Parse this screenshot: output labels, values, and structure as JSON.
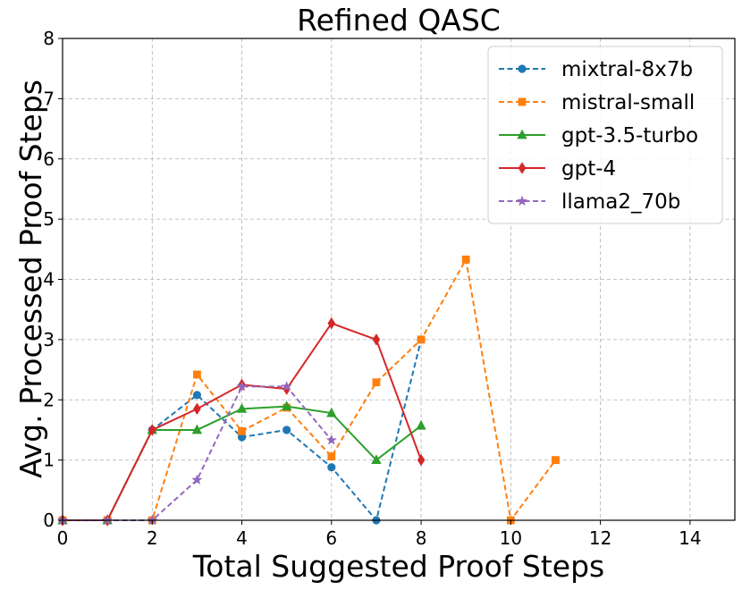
{
  "chart_data": {
    "type": "line",
    "title": "Refined QASC",
    "xlabel": "Total Suggested Proof Steps",
    "ylabel": "Avg. Processed Proof Steps",
    "xlim": [
      0,
      15
    ],
    "ylim": [
      0,
      8
    ],
    "xticks": [
      0,
      2,
      4,
      6,
      8,
      10,
      12,
      14
    ],
    "yticks": [
      0,
      1,
      2,
      3,
      4,
      5,
      6,
      7,
      8
    ],
    "grid": true,
    "legend_position": "top-right",
    "series": [
      {
        "name": "mixtral-8x7b",
        "color": "#1f77b4",
        "marker": "circle",
        "dashed": true,
        "points": [
          [
            0,
            0
          ],
          [
            1,
            0
          ],
          [
            2,
            1.5
          ],
          [
            3,
            2.08
          ],
          [
            4,
            1.38
          ],
          [
            5,
            1.5
          ],
          [
            6,
            0.88
          ],
          [
            7,
            0
          ],
          [
            8,
            3.0
          ]
        ]
      },
      {
        "name": "mistral-small",
        "color": "#ff7f0e",
        "marker": "square",
        "dashed": true,
        "points": [
          [
            0,
            0
          ],
          [
            1,
            0
          ],
          [
            2,
            0
          ],
          [
            3,
            2.42
          ],
          [
            4,
            1.48
          ],
          [
            5,
            1.87
          ],
          [
            6,
            1.06
          ],
          [
            7,
            2.29
          ],
          [
            8,
            3.0
          ],
          [
            9,
            4.33
          ],
          [
            10,
            0
          ],
          [
            11,
            1.0
          ]
        ]
      },
      {
        "name": "gpt-3.5-turbo",
        "color": "#2ca02c",
        "marker": "triangle",
        "dashed": false,
        "points": [
          [
            0,
            0
          ],
          [
            1,
            0
          ],
          [
            2,
            1.5
          ],
          [
            3,
            1.5
          ],
          [
            4,
            1.85
          ],
          [
            5,
            1.89
          ],
          [
            6,
            1.78
          ],
          [
            7,
            1.0
          ],
          [
            8,
            1.57
          ]
        ]
      },
      {
        "name": "gpt-4",
        "color": "#d62728",
        "marker": "diamond",
        "dashed": false,
        "points": [
          [
            0,
            0
          ],
          [
            1,
            0
          ],
          [
            2,
            1.5
          ],
          [
            3,
            1.85
          ],
          [
            4,
            2.25
          ],
          [
            5,
            2.18
          ],
          [
            6,
            3.27
          ],
          [
            7,
            3.0
          ],
          [
            8,
            1.0
          ]
        ]
      },
      {
        "name": "llama2_70b",
        "color": "#9467bd",
        "marker": "star",
        "dashed": true,
        "points": [
          [
            0,
            0
          ],
          [
            1,
            0
          ],
          [
            2,
            0
          ],
          [
            3,
            0.67
          ],
          [
            4,
            2.22
          ],
          [
            5,
            2.22
          ],
          [
            6,
            1.33
          ]
        ]
      }
    ]
  }
}
